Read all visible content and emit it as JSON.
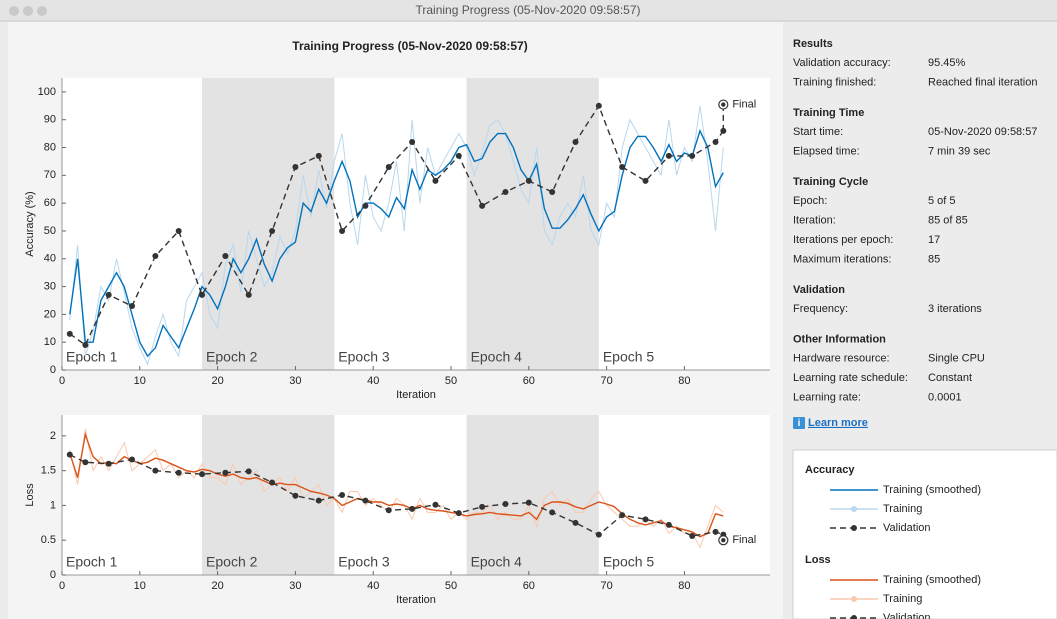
{
  "window_title": "Training Progress (05-Nov-2020 09:58:57)",
  "chart_data": [
    {
      "type": "line",
      "title": "Training Progress (05-Nov-2020 09:58:57)",
      "legend_title": "Accuracy",
      "ylabel": "Accuracy (%)",
      "xlabel": "Iteration",
      "xlim": [
        0,
        91
      ],
      "ylim": [
        0,
        105
      ],
      "xticks": [
        0,
        10,
        20,
        30,
        40,
        50,
        60,
        70,
        80
      ],
      "yticks": [
        0,
        10,
        20,
        30,
        40,
        50,
        60,
        70,
        80,
        90,
        100
      ],
      "epochs": [
        {
          "label": "Epoch 1",
          "start": 0,
          "end": 18
        },
        {
          "label": "Epoch 2",
          "start": 18,
          "end": 35
        },
        {
          "label": "Epoch 3",
          "start": 35,
          "end": 52
        },
        {
          "label": "Epoch 4",
          "start": 52,
          "end": 69
        },
        {
          "label": "Epoch 5",
          "start": 69,
          "end": 91
        }
      ],
      "x": [
        1,
        2,
        3,
        4,
        5,
        6,
        7,
        8,
        9,
        10,
        11,
        12,
        13,
        14,
        15,
        16,
        17,
        18,
        19,
        20,
        21,
        22,
        23,
        24,
        25,
        26,
        27,
        28,
        29,
        30,
        31,
        32,
        33,
        34,
        35,
        36,
        37,
        38,
        39,
        40,
        41,
        42,
        43,
        44,
        45,
        46,
        47,
        48,
        49,
        50,
        51,
        52,
        53,
        54,
        55,
        56,
        57,
        58,
        59,
        60,
        61,
        62,
        63,
        64,
        65,
        66,
        67,
        68,
        69,
        70,
        71,
        72,
        73,
        74,
        75,
        76,
        77,
        78,
        79,
        80,
        81,
        82,
        83,
        84,
        85
      ],
      "series": [
        {
          "name": "Training (smoothed)",
          "color": "#0072bd",
          "style": "smoothed",
          "values": [
            20,
            40,
            10,
            10,
            25,
            30,
            35,
            30,
            20,
            10,
            5,
            8,
            16,
            12,
            8,
            15,
            22,
            30,
            27,
            22,
            30,
            40,
            35,
            40,
            47,
            38,
            32,
            40,
            44,
            46,
            60,
            57,
            65,
            60,
            68,
            75,
            68,
            55,
            60,
            60,
            58,
            55,
            62,
            58,
            72,
            65,
            72,
            70,
            72,
            75,
            80,
            81,
            75,
            76,
            82,
            85,
            85,
            80,
            72,
            68,
            74,
            58,
            51,
            51,
            54,
            58,
            63,
            56,
            50,
            55,
            57,
            70,
            80,
            84,
            84,
            80,
            75,
            81,
            75,
            78,
            77,
            86,
            80,
            66,
            71
          ]
        },
        {
          "name": "Training",
          "color": "#b9d7ee",
          "style": "raw",
          "values": [
            18,
            45,
            5,
            14,
            30,
            25,
            40,
            28,
            15,
            8,
            2,
            12,
            20,
            10,
            5,
            25,
            30,
            35,
            20,
            15,
            38,
            45,
            28,
            50,
            40,
            30,
            35,
            48,
            42,
            50,
            70,
            55,
            72,
            58,
            75,
            85,
            60,
            45,
            70,
            55,
            50,
            60,
            75,
            50,
            90,
            60,
            80,
            70,
            75,
            80,
            85,
            80,
            70,
            78,
            88,
            90,
            85,
            75,
            65,
            60,
            80,
            50,
            45,
            55,
            60,
            55,
            70,
            50,
            45,
            60,
            55,
            80,
            90,
            85,
            80,
            75,
            70,
            90,
            70,
            80,
            75,
            95,
            75,
            50,
            80
          ]
        },
        {
          "name": "Validation",
          "color": "#333333",
          "style": "validation",
          "x": [
            1,
            3,
            6,
            9,
            12,
            15,
            18,
            21,
            24,
            27,
            30,
            33,
            36,
            39,
            42,
            45,
            48,
            51,
            54,
            57,
            60,
            63,
            66,
            69,
            72,
            75,
            78,
            81,
            84,
            85
          ],
          "values": [
            13,
            9,
            27,
            23,
            41,
            50,
            27,
            41,
            27,
            50,
            73,
            77,
            50,
            59,
            73,
            82,
            68,
            77,
            59,
            64,
            68,
            64,
            82,
            95,
            73,
            68,
            77,
            77,
            82,
            86
          ],
          "final": {
            "label": "Final",
            "x": 85,
            "value": 95.45
          }
        }
      ]
    },
    {
      "type": "line",
      "legend_title": "Loss",
      "ylabel": "Loss",
      "xlabel": "Iteration",
      "xlim": [
        0,
        91
      ],
      "ylim": [
        0,
        2.3
      ],
      "xticks": [
        0,
        10,
        20,
        30,
        40,
        50,
        60,
        70,
        80
      ],
      "yticks": [
        0,
        0.5,
        1,
        1.5,
        2
      ],
      "epochs": [
        {
          "label": "Epoch 1",
          "start": 0,
          "end": 18
        },
        {
          "label": "Epoch 2",
          "start": 18,
          "end": 35
        },
        {
          "label": "Epoch 3",
          "start": 35,
          "end": 52
        },
        {
          "label": "Epoch 4",
          "start": 52,
          "end": 69
        },
        {
          "label": "Epoch 5",
          "start": 69,
          "end": 91
        }
      ],
      "x": [
        1,
        2,
        3,
        4,
        5,
        6,
        7,
        8,
        9,
        10,
        11,
        12,
        13,
        14,
        15,
        16,
        17,
        18,
        19,
        20,
        21,
        22,
        23,
        24,
        25,
        26,
        27,
        28,
        29,
        30,
        31,
        32,
        33,
        34,
        35,
        36,
        37,
        38,
        39,
        40,
        41,
        42,
        43,
        44,
        45,
        46,
        47,
        48,
        49,
        50,
        51,
        52,
        53,
        54,
        55,
        56,
        57,
        58,
        59,
        60,
        61,
        62,
        63,
        64,
        65,
        66,
        67,
        68,
        69,
        70,
        71,
        72,
        73,
        74,
        75,
        76,
        77,
        78,
        79,
        80,
        81,
        82,
        83,
        84,
        85
      ],
      "series": [
        {
          "name": "Training (smoothed)",
          "color": "#d95319",
          "style": "smoothed",
          "values": [
            1.75,
            1.4,
            2.02,
            1.7,
            1.6,
            1.62,
            1.6,
            1.7,
            1.65,
            1.6,
            1.62,
            1.68,
            1.65,
            1.6,
            1.55,
            1.5,
            1.48,
            1.52,
            1.5,
            1.45,
            1.42,
            1.45,
            1.4,
            1.38,
            1.4,
            1.35,
            1.3,
            1.32,
            1.3,
            1.3,
            1.25,
            1.2,
            1.18,
            1.15,
            1.1,
            1.0,
            1.05,
            1.1,
            1.08,
            1.05,
            1.05,
            1.0,
            1.02,
            1.0,
            0.95,
            1.0,
            0.95,
            0.93,
            0.92,
            0.9,
            0.88,
            0.85,
            0.87,
            0.88,
            0.9,
            0.88,
            0.87,
            0.86,
            0.85,
            0.9,
            0.8,
            1.0,
            1.05,
            1.05,
            1.03,
            0.98,
            0.95,
            1.0,
            1.05,
            1.02,
            0.98,
            0.88,
            0.8,
            0.75,
            0.72,
            0.75,
            0.78,
            0.7,
            0.68,
            0.65,
            0.62,
            0.55,
            0.6,
            0.88,
            0.85
          ]
        },
        {
          "name": "Training",
          "color": "#f9c9ae",
          "style": "raw",
          "values": [
            1.8,
            1.3,
            2.1,
            1.5,
            1.7,
            1.5,
            1.7,
            1.9,
            1.5,
            1.6,
            1.7,
            1.8,
            1.5,
            1.6,
            1.4,
            1.5,
            1.4,
            1.6,
            1.4,
            1.4,
            1.3,
            1.6,
            1.3,
            1.4,
            1.5,
            1.2,
            1.3,
            1.4,
            1.2,
            1.4,
            1.1,
            1.2,
            1.3,
            1.0,
            1.1,
            0.9,
            1.2,
            1.2,
            1.0,
            1.1,
            1.0,
            0.9,
            1.1,
            1.0,
            0.8,
            1.1,
            0.9,
            0.9,
            1.0,
            0.8,
            0.9,
            0.8,
            0.9,
            0.9,
            1.0,
            0.8,
            0.9,
            0.8,
            0.8,
            1.0,
            0.7,
            1.1,
            1.2,
            1.0,
            1.1,
            0.9,
            0.9,
            1.1,
            1.2,
            1.0,
            0.9,
            0.8,
            0.7,
            0.7,
            0.8,
            0.7,
            0.8,
            0.6,
            0.7,
            0.6,
            0.6,
            0.4,
            0.7,
            1.0,
            0.9
          ]
        },
        {
          "name": "Validation",
          "color": "#333333",
          "style": "validation",
          "x": [
            1,
            3,
            6,
            9,
            12,
            15,
            18,
            21,
            24,
            27,
            30,
            33,
            36,
            39,
            42,
            45,
            48,
            51,
            54,
            57,
            60,
            63,
            66,
            69,
            72,
            75,
            78,
            81,
            84,
            85
          ],
          "values": [
            1.73,
            1.62,
            1.6,
            1.66,
            1.5,
            1.47,
            1.45,
            1.47,
            1.49,
            1.33,
            1.14,
            1.07,
            1.15,
            1.07,
            0.93,
            0.95,
            1.01,
            0.89,
            0.98,
            1.02,
            1.04,
            0.9,
            0.75,
            0.58,
            0.86,
            0.8,
            0.72,
            0.56,
            0.62,
            0.58
          ],
          "final": {
            "label": "Final",
            "x": 85,
            "value": 0.5
          }
        }
      ]
    }
  ],
  "panel": {
    "sections": [
      {
        "heading": "Results",
        "rows": [
          [
            "Validation accuracy:",
            "95.45%"
          ],
          [
            "Training finished:",
            "Reached final iteration"
          ]
        ]
      },
      {
        "heading": "Training Time",
        "rows": [
          [
            "Start time:",
            "05-Nov-2020 09:58:57"
          ],
          [
            "Elapsed time:",
            "7 min 39 sec"
          ]
        ]
      },
      {
        "heading": "Training Cycle",
        "rows": [
          [
            "Epoch:",
            "5 of 5"
          ],
          [
            "Iteration:",
            "85 of 85"
          ],
          [
            "Iterations per epoch:",
            "17"
          ],
          [
            "Maximum iterations:",
            "85"
          ]
        ]
      },
      {
        "heading": "Validation",
        "rows": [
          [
            "Frequency:",
            "3 iterations"
          ]
        ]
      },
      {
        "heading": "Other Information",
        "rows": [
          [
            "Hardware resource:",
            "Single CPU"
          ],
          [
            "Learning rate schedule:",
            "Constant"
          ],
          [
            "Learning rate:",
            "0.0001"
          ]
        ]
      }
    ],
    "link": "Learn more"
  }
}
